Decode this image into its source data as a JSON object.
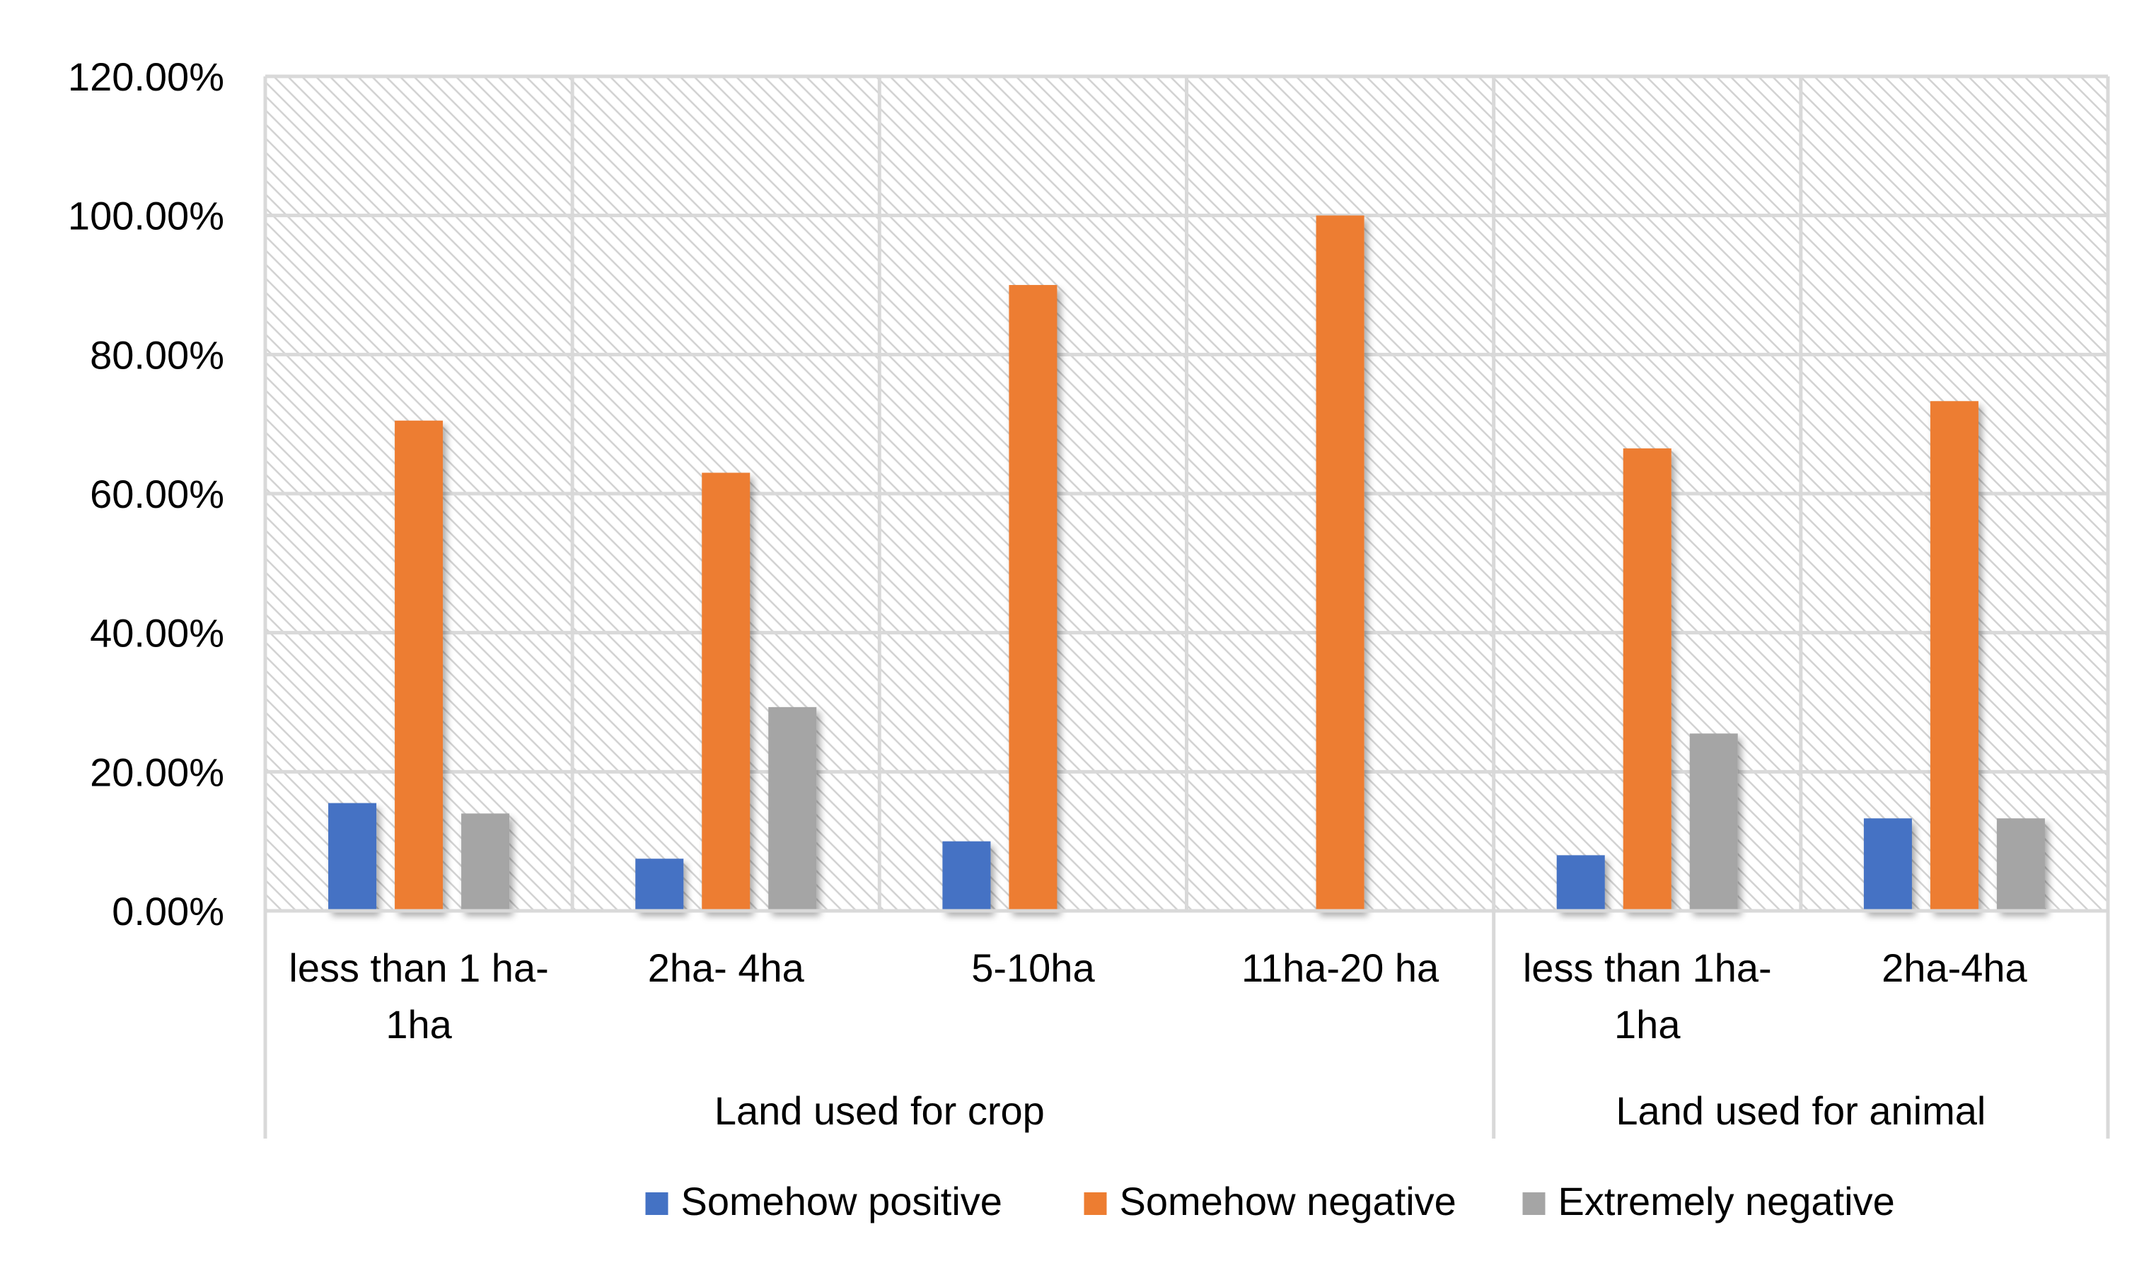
{
  "chart_data": {
    "type": "bar",
    "title": "",
    "xlabel": "",
    "ylabel": "",
    "ylim": [
      0,
      1.2
    ],
    "yticks": [
      "0.00%",
      "20.00%",
      "40.00%",
      "60.00%",
      "80.00%",
      "100.00%",
      "120.00%"
    ],
    "groups": [
      {
        "label": "Land used for crop",
        "categories": [
          0,
          1,
          2,
          3
        ]
      },
      {
        "label": "Land used for animal",
        "categories": [
          4,
          5
        ]
      }
    ],
    "categories": [
      [
        "less than 1 ha-",
        "1ha"
      ],
      [
        "2ha- 4ha"
      ],
      [
        "5-10ha"
      ],
      [
        "11ha-20 ha"
      ],
      [
        "less than 1ha-",
        "1ha"
      ],
      [
        "2ha-4ha"
      ]
    ],
    "series": [
      {
        "name": "Somehow positive",
        "color": "#4472C4",
        "values": [
          0.155,
          0.075,
          0.1,
          0,
          0.08,
          0.133
        ]
      },
      {
        "name": "Somehow negative",
        "color": "#ED7D31",
        "values": [
          0.705,
          0.63,
          0.9,
          1.0,
          0.665,
          0.733
        ]
      },
      {
        "name": "Extremely negative",
        "color": "#A5A5A5",
        "values": [
          0.14,
          0.293,
          0,
          0,
          0.255,
          0.133
        ]
      }
    ],
    "legend_position": "bottom"
  }
}
